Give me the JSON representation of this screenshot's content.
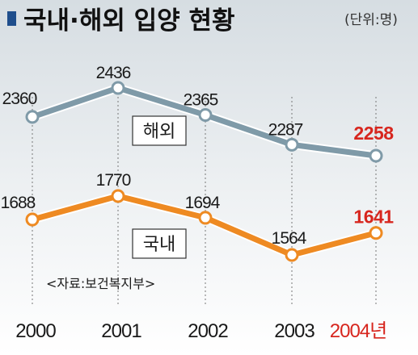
{
  "header": {
    "title": "국내·해외 입양 현황",
    "unit": "(단위:명)"
  },
  "source": "<자료:보건복지부>",
  "colors": {
    "title_marker": "#1f4e8c",
    "overseas_line": "#7f9aa8",
    "domestic_line": "#ee8a22",
    "highlight_red": "#d7261e",
    "background_top": "#d9dfe3"
  },
  "chart_data": {
    "type": "line",
    "title": "국내·해외 입양 현황",
    "unit": "(단위:명)",
    "categories": [
      "2000",
      "2001",
      "2002",
      "2003",
      "2004년"
    ],
    "series": [
      {
        "name": "해외",
        "values": [
          2360,
          2436,
          2365,
          2287,
          2258
        ]
      },
      {
        "name": "국내",
        "values": [
          1688,
          1770,
          1694,
          1564,
          1641
        ]
      }
    ]
  }
}
